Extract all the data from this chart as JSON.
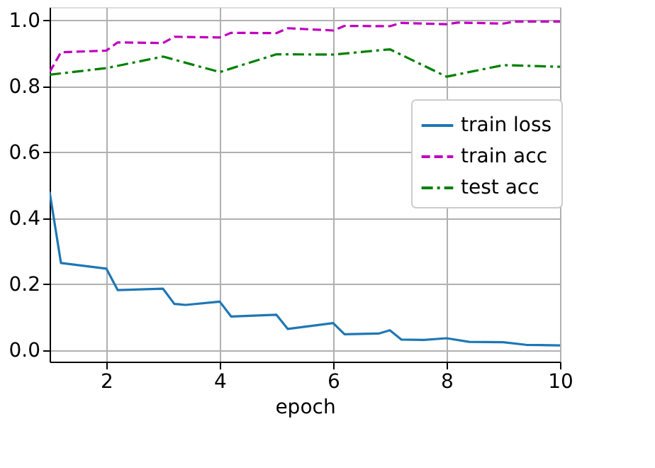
{
  "chart_data": {
    "type": "line",
    "xlabel": "epoch",
    "xlim": [
      1,
      10
    ],
    "xticks": [
      2,
      4,
      6,
      8,
      10
    ],
    "ylim": [
      -0.035,
      1.04
    ],
    "yticks": [
      {
        "value": 0,
        "label": "0.0"
      },
      0.2,
      0.4,
      0.6,
      0.8,
      {
        "value": 1,
        "label": "1.0"
      }
    ],
    "grid": true,
    "legend": "right",
    "marker": "none",
    "series": [
      {
        "name": "train loss",
        "color": "#1f77b4",
        "line_style": "solid",
        "x": [
          1,
          1.2,
          2,
          2.2,
          3,
          3.2,
          3.4,
          4,
          4.2,
          5,
          5.2,
          6,
          6.2,
          6.8,
          7,
          7.2,
          7.6,
          8,
          8.4,
          9,
          9.4,
          10
        ],
        "values": [
          0.48,
          0.264,
          0.247,
          0.182,
          0.186,
          0.14,
          0.137,
          0.147,
          0.102,
          0.107,
          0.064,
          0.082,
          0.048,
          0.05,
          0.06,
          0.032,
          0.031,
          0.036,
          0.025,
          0.024,
          0.016,
          0.014
        ]
      },
      {
        "name": "train acc",
        "color": "#bf00bf",
        "line_style": "dashed",
        "x": [
          1,
          1.2,
          2,
          2.2,
          3,
          3.2,
          4,
          4.2,
          5,
          5.2,
          6,
          6.2,
          7,
          7.2,
          8,
          8.2,
          9,
          9.2,
          10
        ],
        "values": [
          0.843,
          0.903,
          0.908,
          0.933,
          0.931,
          0.95,
          0.948,
          0.962,
          0.961,
          0.976,
          0.969,
          0.983,
          0.982,
          0.992,
          0.988,
          0.993,
          0.99,
          0.996,
          0.996
        ]
      },
      {
        "name": "test acc",
        "color": "#008000",
        "line_style": "dashdot",
        "x": [
          1,
          2,
          3,
          4,
          5,
          6,
          7,
          8,
          9,
          10
        ],
        "values": [
          0.835,
          0.855,
          0.89,
          0.843,
          0.897,
          0.896,
          0.912,
          0.829,
          0.864,
          0.859
        ]
      }
    ]
  }
}
